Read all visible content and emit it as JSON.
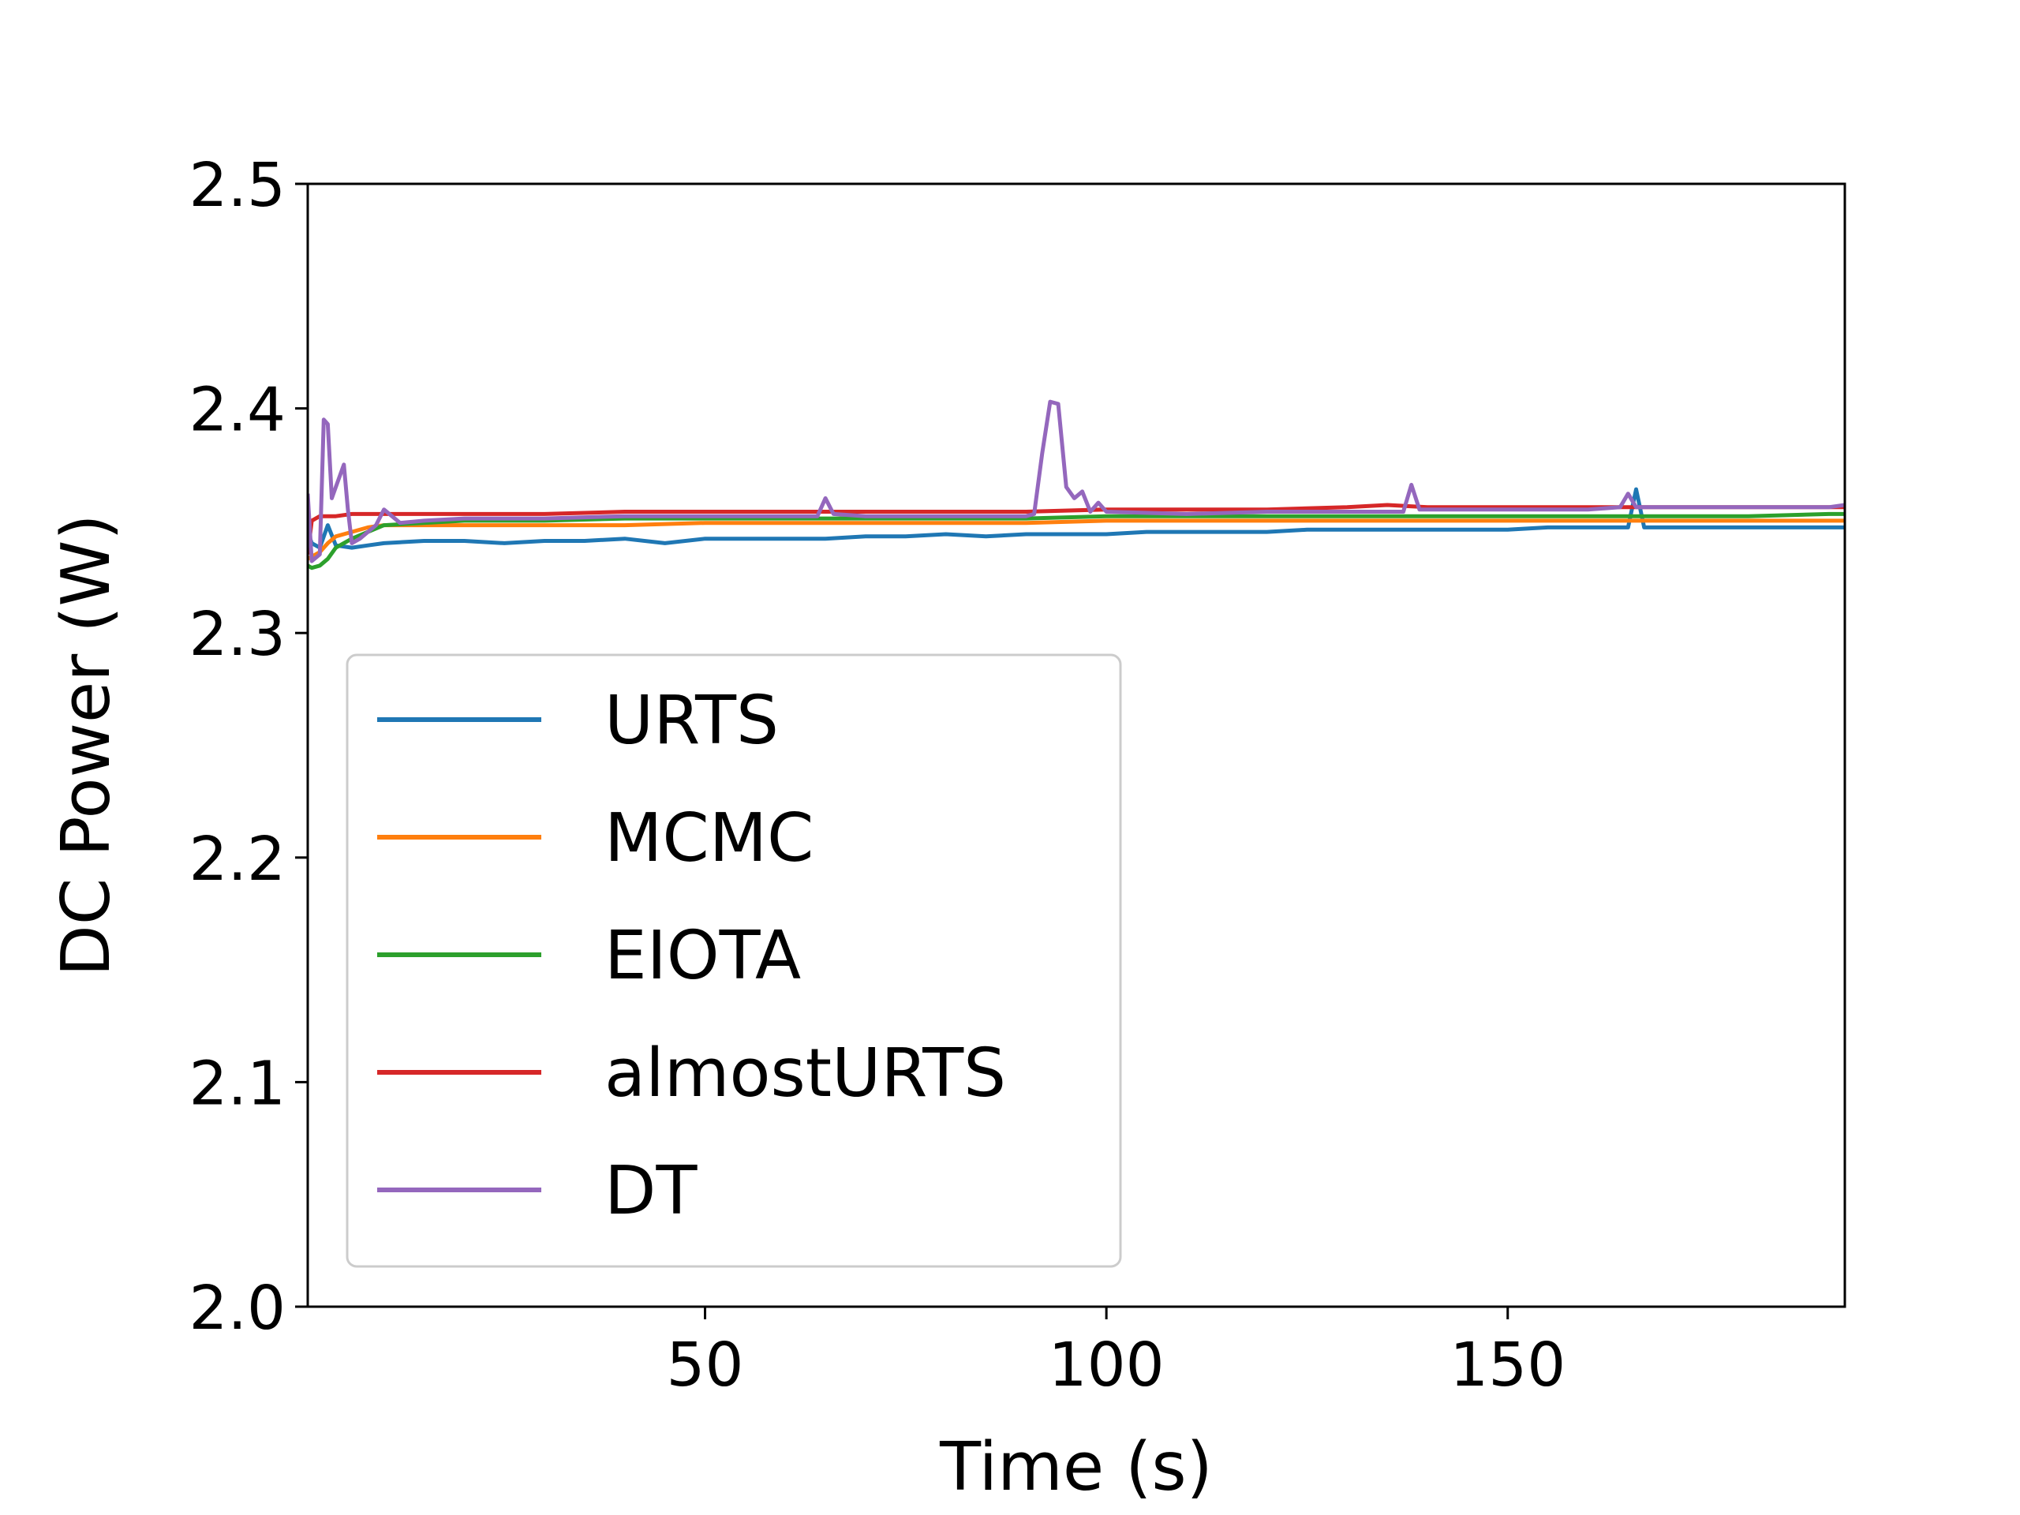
{
  "chart_data": {
    "type": "line",
    "title": "",
    "xlabel": "Time (s)",
    "ylabel": "DC Power (W)",
    "xlim": [
      0.5,
      192
    ],
    "ylim": [
      2.0,
      2.5
    ],
    "xticks": [
      50,
      100,
      150
    ],
    "xtick_labels": [
      "50",
      "100",
      "150"
    ],
    "yticks": [
      2.0,
      2.1,
      2.2,
      2.3,
      2.4,
      2.5
    ],
    "ytick_labels": [
      "2.0",
      "2.1",
      "2.2",
      "2.3",
      "2.4",
      "2.5"
    ],
    "grid": false,
    "legend_position": "lower-left",
    "series": [
      {
        "name": "URTS",
        "color": "#1f77b4",
        "x": [
          0.5,
          1,
          2,
          3,
          4,
          6,
          8,
          10,
          15,
          20,
          25,
          30,
          35,
          40,
          45,
          50,
          55,
          60,
          65,
          70,
          75,
          80,
          85,
          90,
          95,
          100,
          105,
          110,
          115,
          120,
          125,
          130,
          135,
          140,
          145,
          150,
          155,
          160,
          165,
          166,
          167,
          170,
          175,
          180,
          185,
          190,
          192
        ],
        "y": [
          2.345,
          2.34,
          2.338,
          2.348,
          2.339,
          2.338,
          2.339,
          2.34,
          2.341,
          2.341,
          2.34,
          2.341,
          2.341,
          2.342,
          2.34,
          2.342,
          2.342,
          2.342,
          2.342,
          2.343,
          2.343,
          2.344,
          2.343,
          2.344,
          2.344,
          2.344,
          2.345,
          2.345,
          2.345,
          2.345,
          2.346,
          2.346,
          2.346,
          2.346,
          2.346,
          2.346,
          2.347,
          2.347,
          2.347,
          2.364,
          2.347,
          2.347,
          2.347,
          2.347,
          2.347,
          2.347,
          2.347
        ]
      },
      {
        "name": "MCMC",
        "color": "#ff7f0e",
        "x": [
          0.5,
          1,
          2,
          3,
          4,
          6,
          8,
          10,
          15,
          20,
          30,
          40,
          50,
          60,
          70,
          80,
          90,
          100,
          110,
          120,
          130,
          140,
          150,
          160,
          170,
          180,
          190,
          192
        ],
        "y": [
          2.333,
          2.334,
          2.336,
          2.34,
          2.343,
          2.345,
          2.347,
          2.348,
          2.348,
          2.348,
          2.348,
          2.348,
          2.349,
          2.349,
          2.349,
          2.349,
          2.349,
          2.35,
          2.35,
          2.35,
          2.35,
          2.35,
          2.35,
          2.35,
          2.35,
          2.35,
          2.35,
          2.35
        ]
      },
      {
        "name": "EIOTA",
        "color": "#2ca02c",
        "x": [
          0.5,
          1,
          2,
          3,
          4,
          6,
          8,
          10,
          15,
          20,
          30,
          40,
          50,
          60,
          70,
          80,
          90,
          100,
          110,
          120,
          130,
          140,
          150,
          160,
          170,
          180,
          190,
          192
        ],
        "y": [
          2.33,
          2.329,
          2.33,
          2.333,
          2.338,
          2.342,
          2.345,
          2.348,
          2.349,
          2.35,
          2.35,
          2.351,
          2.351,
          2.351,
          2.351,
          2.351,
          2.351,
          2.352,
          2.352,
          2.352,
          2.352,
          2.352,
          2.352,
          2.352,
          2.352,
          2.352,
          2.353,
          2.353
        ]
      },
      {
        "name": "almostURTS",
        "color": "#d62728",
        "x": [
          0.5,
          1,
          2,
          3,
          4,
          6,
          8,
          10,
          15,
          20,
          30,
          40,
          50,
          60,
          70,
          80,
          90,
          100,
          110,
          120,
          130,
          135,
          140,
          150,
          160,
          170,
          180,
          190,
          192
        ],
        "y": [
          2.335,
          2.35,
          2.352,
          2.352,
          2.352,
          2.353,
          2.353,
          2.353,
          2.353,
          2.353,
          2.353,
          2.354,
          2.354,
          2.354,
          2.354,
          2.354,
          2.354,
          2.355,
          2.355,
          2.355,
          2.356,
          2.357,
          2.356,
          2.356,
          2.356,
          2.356,
          2.356,
          2.356,
          2.356
        ]
      },
      {
        "name": "DT",
        "color": "#9467bd",
        "x": [
          0.5,
          1,
          2,
          2.5,
          3,
          3.5,
          4,
          5,
          5.5,
          6,
          7,
          8,
          9,
          10,
          12,
          15,
          20,
          30,
          40,
          50,
          60,
          64,
          65,
          66,
          70,
          80,
          90,
          91,
          92,
          93,
          94,
          95,
          96,
          97,
          98,
          99,
          100,
          110,
          120,
          130,
          137,
          138,
          139,
          145,
          150,
          160,
          164,
          165,
          166,
          170,
          180,
          190,
          192
        ],
        "y": [
          2.362,
          2.332,
          2.335,
          2.395,
          2.393,
          2.36,
          2.365,
          2.375,
          2.355,
          2.34,
          2.342,
          2.345,
          2.348,
          2.355,
          2.349,
          2.35,
          2.351,
          2.351,
          2.352,
          2.352,
          2.352,
          2.352,
          2.36,
          2.353,
          2.352,
          2.352,
          2.352,
          2.353,
          2.38,
          2.403,
          2.402,
          2.365,
          2.36,
          2.363,
          2.354,
          2.358,
          2.354,
          2.353,
          2.354,
          2.354,
          2.354,
          2.366,
          2.355,
          2.355,
          2.355,
          2.355,
          2.356,
          2.362,
          2.356,
          2.356,
          2.356,
          2.356,
          2.357
        ]
      }
    ]
  }
}
